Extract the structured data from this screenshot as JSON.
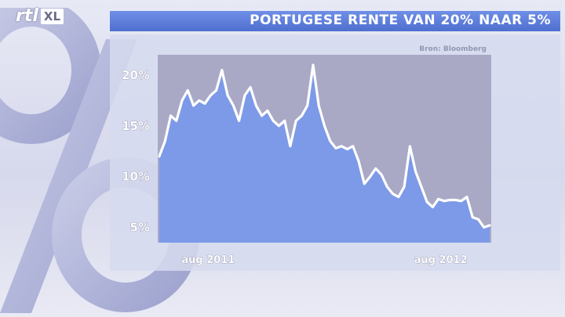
{
  "broadcaster": {
    "logo_text": "rtl",
    "logo_badge": "XL"
  },
  "header": {
    "title": "PORTUGESE RENTE VAN 20% NAAR 5%"
  },
  "source_label": "Bron: Bloomberg",
  "colors": {
    "header_blue": "#5a79da",
    "area_fill": "#7d9ae8",
    "plot_bg": "#a9a9c6",
    "line": "#ffffff"
  },
  "chart_data": {
    "type": "area",
    "title": "PORTUGESE RENTE VAN 20% NAAR 5%",
    "xlabel": "",
    "ylabel": "",
    "ylim": [
      3.5,
      22
    ],
    "yticks": [
      {
        "value": 20,
        "label": "20%"
      },
      {
        "value": 15,
        "label": "15%"
      },
      {
        "value": 10,
        "label": "10%"
      },
      {
        "value": 5,
        "label": "5%"
      }
    ],
    "xticks": [
      {
        "value": "2011-08",
        "label": "aug 2011"
      },
      {
        "value": "2012-08",
        "label": "aug 2012"
      }
    ],
    "xlim": [
      "2011-07",
      "2012-09"
    ],
    "grid": false,
    "series": [
      {
        "values": [
          {
            "x": "2011-07",
            "y": 12.0
          },
          {
            "x": "2011-07",
            "y": 13.5
          },
          {
            "x": "2011-08",
            "y": 16.0
          },
          {
            "x": "2011-08",
            "y": 15.5
          },
          {
            "x": "2011-08",
            "y": 17.5
          },
          {
            "x": "2011-09",
            "y": 18.5
          },
          {
            "x": "2011-09",
            "y": 17.0
          },
          {
            "x": "2011-09",
            "y": 17.5
          },
          {
            "x": "2011-09",
            "y": 17.2
          },
          {
            "x": "2011-10",
            "y": 18.0
          },
          {
            "x": "2011-10",
            "y": 18.5
          },
          {
            "x": "2011-10",
            "y": 20.5
          },
          {
            "x": "2011-10",
            "y": 18.0
          },
          {
            "x": "2011-11",
            "y": 17.0
          },
          {
            "x": "2011-11",
            "y": 15.5
          },
          {
            "x": "2011-11",
            "y": 18.0
          },
          {
            "x": "2011-11",
            "y": 18.8
          },
          {
            "x": "2011-12",
            "y": 17.0
          },
          {
            "x": "2011-12",
            "y": 16.0
          },
          {
            "x": "2011-12",
            "y": 16.5
          },
          {
            "x": "2011-12",
            "y": 15.5
          },
          {
            "x": "2012-01",
            "y": 15.0
          },
          {
            "x": "2012-01",
            "y": 15.5
          },
          {
            "x": "2012-01",
            "y": 13.0
          },
          {
            "x": "2012-01",
            "y": 15.5
          },
          {
            "x": "2012-01",
            "y": 16.0
          },
          {
            "x": "2012-02",
            "y": 17.0
          },
          {
            "x": "2012-02",
            "y": 21.0
          },
          {
            "x": "2012-02",
            "y": 17.0
          },
          {
            "x": "2012-02",
            "y": 15.0
          },
          {
            "x": "2012-03",
            "y": 13.5
          },
          {
            "x": "2012-03",
            "y": 12.8
          },
          {
            "x": "2012-03",
            "y": 13.0
          },
          {
            "x": "2012-03",
            "y": 12.7
          },
          {
            "x": "2012-04",
            "y": 13.0
          },
          {
            "x": "2012-04",
            "y": 11.5
          },
          {
            "x": "2012-04",
            "y": 9.3
          },
          {
            "x": "2012-04",
            "y": 10.0
          },
          {
            "x": "2012-05",
            "y": 10.8
          },
          {
            "x": "2012-05",
            "y": 10.2
          },
          {
            "x": "2012-05",
            "y": 9.0
          },
          {
            "x": "2012-05",
            "y": 8.3
          },
          {
            "x": "2012-06",
            "y": 8.0
          },
          {
            "x": "2012-06",
            "y": 9.0
          },
          {
            "x": "2012-06",
            "y": 13.0
          },
          {
            "x": "2012-06",
            "y": 10.5
          },
          {
            "x": "2012-07",
            "y": 9.0
          },
          {
            "x": "2012-07",
            "y": 7.5
          },
          {
            "x": "2012-07",
            "y": 7.0
          },
          {
            "x": "2012-07",
            "y": 7.8
          },
          {
            "x": "2012-08",
            "y": 7.6
          },
          {
            "x": "2012-08",
            "y": 7.7
          },
          {
            "x": "2012-08",
            "y": 7.7
          },
          {
            "x": "2012-08",
            "y": 7.6
          },
          {
            "x": "2012-08",
            "y": 8.0
          },
          {
            "x": "2012-09",
            "y": 6.0
          },
          {
            "x": "2012-09",
            "y": 5.8
          },
          {
            "x": "2012-09",
            "y": 5.0
          },
          {
            "x": "2012-09",
            "y": 5.2
          }
        ]
      }
    ]
  }
}
